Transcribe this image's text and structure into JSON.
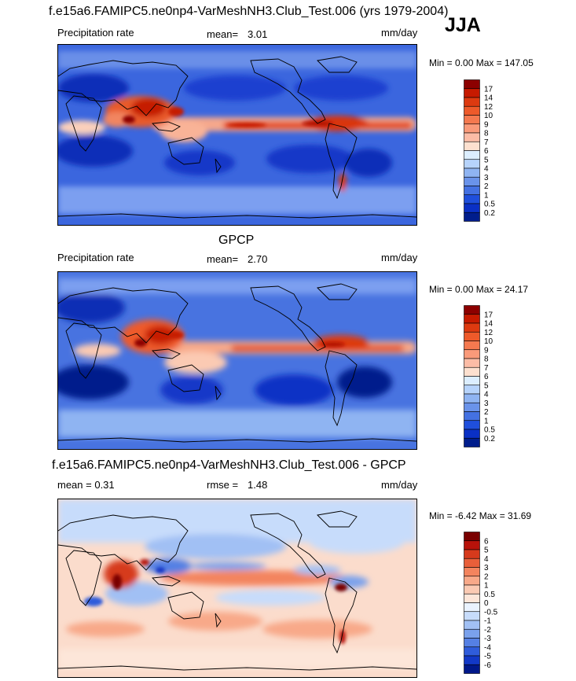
{
  "header": {
    "title": "f.e15a6.FAMIPC5.ne0np4-VarMeshNH3.Club_Test.006 (yrs 1979-2004)",
    "season": "JJA"
  },
  "panels": [
    {
      "id": "model",
      "left_label": "Precipitation rate",
      "stat_label": "mean=",
      "stat_value": "3.01",
      "units": "mm/day",
      "minmax": "Min =   0.00 Max = 147.05",
      "levels": [
        "17",
        "14",
        "12",
        "10",
        "9",
        "8",
        "7",
        "6",
        "5",
        "4",
        "3",
        "2",
        "1",
        "0.5",
        "0.2"
      ],
      "colors": [
        "#8c0000",
        "#c61a00",
        "#dd3a10",
        "#ee5a2a",
        "#f5794f",
        "#fa9a7a",
        "#fcbca6",
        "#fde0cf",
        "#dceeff",
        "#b6d3fb",
        "#8fb4f2",
        "#6a93ea",
        "#4471e2",
        "#1f4fdc",
        "#0a30c5",
        "#001d8c"
      ]
    },
    {
      "id": "obs",
      "title": "GPCP",
      "left_label": "Precipitation rate",
      "stat_label": "mean=",
      "stat_value": "2.70",
      "units": "mm/day",
      "minmax": "Min =   0.00 Max =  24.17",
      "levels": [
        "17",
        "14",
        "12",
        "10",
        "9",
        "8",
        "7",
        "6",
        "5",
        "4",
        "3",
        "2",
        "1",
        "0.5",
        "0.2"
      ],
      "colors": [
        "#8c0000",
        "#c61a00",
        "#dd3a10",
        "#ee5a2a",
        "#f5794f",
        "#fa9a7a",
        "#fcbca6",
        "#fde0cf",
        "#dceeff",
        "#b6d3fb",
        "#8fb4f2",
        "#6a93ea",
        "#4471e2",
        "#1f4fdc",
        "#0a30c5",
        "#001d8c"
      ]
    },
    {
      "id": "diff",
      "title": "f.e15a6.FAMIPC5.ne0np4-VarMeshNH3.Club_Test.006 - GPCP",
      "left_label": "mean =   0.31",
      "stat_label": "rmse =",
      "stat_value": "1.48",
      "units": "mm/day",
      "minmax": "Min =  -6.42 Max =  31.69",
      "levels": [
        "6",
        "5",
        "4",
        "3",
        "2",
        "1",
        "0.5",
        "0",
        "-0.5",
        "-1",
        "-2",
        "-3",
        "-4",
        "-5",
        "-6"
      ],
      "colors": [
        "#7a0000",
        "#b8120a",
        "#d63a1c",
        "#e85f3a",
        "#f3845e",
        "#f8a989",
        "#fbcab3",
        "#fde6d9",
        "#eaf3ff",
        "#c7dcfb",
        "#a1c0f4",
        "#7aa1ec",
        "#5580e4",
        "#2f5cdb",
        "#1238c7",
        "#00188a"
      ]
    }
  ],
  "chart_data": [
    {
      "type": "heatmap",
      "subject": "f.e15a6.FAMIPC5.ne0np4-VarMeshNH3.Club_Test.006 (yrs 1979-2004)",
      "variable": "Precipitation rate",
      "units": "mm/day",
      "season": "JJA",
      "mean": 3.01,
      "min": 0.0,
      "max": 147.05,
      "contour_levels": [
        0.2,
        0.5,
        1,
        2,
        3,
        4,
        5,
        6,
        7,
        8,
        9,
        10,
        12,
        14,
        17
      ]
    },
    {
      "type": "heatmap",
      "title": "GPCP",
      "variable": "Precipitation rate",
      "units": "mm/day",
      "season": "JJA",
      "mean": 2.7,
      "min": 0.0,
      "max": 24.17,
      "contour_levels": [
        0.2,
        0.5,
        1,
        2,
        3,
        4,
        5,
        6,
        7,
        8,
        9,
        10,
        12,
        14,
        17
      ]
    },
    {
      "type": "heatmap",
      "title": "f.e15a6.FAMIPC5.ne0np4-VarMeshNH3.Club_Test.006 - GPCP",
      "units": "mm/day",
      "season": "JJA",
      "mean": 0.31,
      "rmse": 1.48,
      "min": -6.42,
      "max": 31.69,
      "contour_levels": [
        -6,
        -5,
        -4,
        -3,
        -2,
        -1,
        -0.5,
        0,
        0.5,
        1,
        2,
        3,
        4,
        5,
        6
      ]
    }
  ]
}
